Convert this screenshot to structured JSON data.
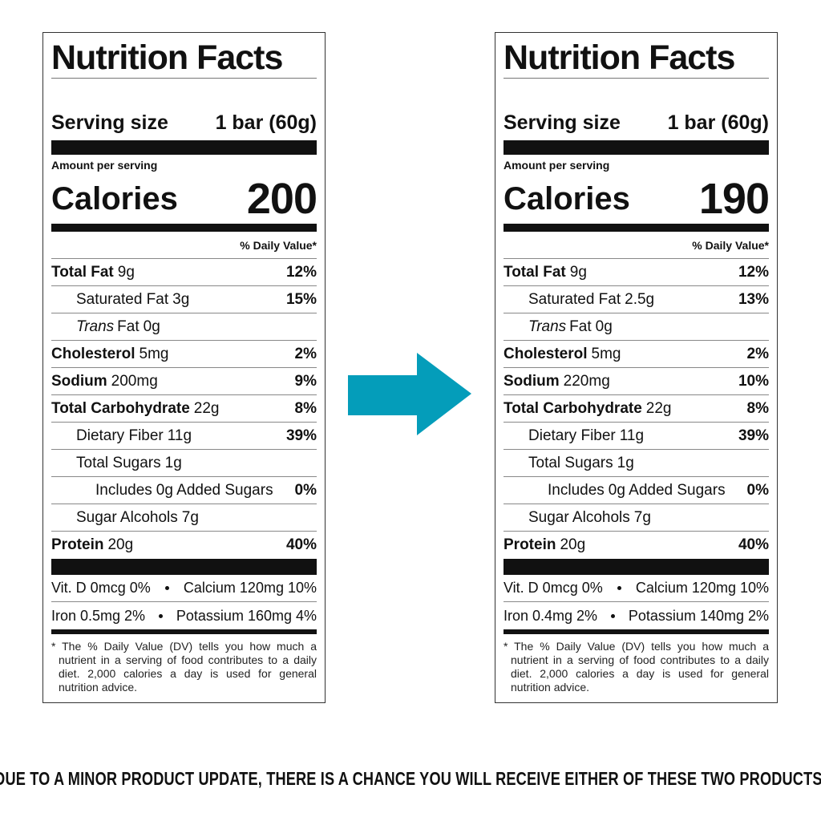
{
  "labels": [
    {
      "title": "Nutrition Facts",
      "serving_label": "Serving size",
      "serving_value": "1 bar (60g)",
      "amount_per_serving": "Amount per serving",
      "calories_label": "Calories",
      "calories": 200,
      "dv_header": "% Daily Value*",
      "rows": [
        {
          "name": "Total Fat",
          "amount": "9g",
          "dv": "12%",
          "level": 0,
          "bold": true
        },
        {
          "name": "Saturated Fat",
          "amount": "3g",
          "dv": "15%",
          "level": 1,
          "bold": false
        },
        {
          "name_italic": "Trans",
          "name": "Fat",
          "amount": "0g",
          "level": 1,
          "bold": false
        },
        {
          "name": "Cholesterol",
          "amount": "5mg",
          "dv": "2%",
          "level": 0,
          "bold": true
        },
        {
          "name": "Sodium",
          "amount": "200mg",
          "dv": "9%",
          "level": 0,
          "bold": true
        },
        {
          "name": "Total Carbohydrate",
          "amount": "22g",
          "dv": "8%",
          "level": 0,
          "bold": true
        },
        {
          "name": "Dietary Fiber",
          "amount": "11g",
          "dv": "39%",
          "level": 1,
          "bold": false
        },
        {
          "name": "Total Sugars",
          "amount": "1g",
          "level": 1,
          "bold": false
        },
        {
          "name": "Includes",
          "amount": "0g Added Sugars",
          "dv": "0%",
          "level": 2,
          "bold": false
        },
        {
          "name": "Sugar Alcohols",
          "amount": "7g",
          "level": 1,
          "bold": false
        },
        {
          "name": "Protein",
          "amount": "20g",
          "dv": "40%",
          "level": 0,
          "bold": true
        }
      ],
      "vitamins": [
        [
          "Vit. D 0mcg 0%",
          "Calcium 120mg 10%"
        ],
        [
          "Iron 0.5mg 2%",
          "Potassium 160mg 4%"
        ]
      ],
      "footnote": "* The % Daily Value (DV) tells you how much a nutrient in a serving of food contributes to a daily diet. 2,000 calories a day is used for general nutrition advice."
    },
    {
      "title": "Nutrition Facts",
      "serving_label": "Serving size",
      "serving_value": "1 bar (60g)",
      "amount_per_serving": "Amount per serving",
      "calories_label": "Calories",
      "calories": 190,
      "dv_header": "% Daily Value*",
      "rows": [
        {
          "name": "Total Fat",
          "amount": "9g",
          "dv": "12%",
          "level": 0,
          "bold": true
        },
        {
          "name": "Saturated Fat",
          "amount": "2.5g",
          "dv": "13%",
          "level": 1,
          "bold": false
        },
        {
          "name_italic": "Trans",
          "name": "Fat",
          "amount": "0g",
          "level": 1,
          "bold": false
        },
        {
          "name": "Cholesterol",
          "amount": "5mg",
          "dv": "2%",
          "level": 0,
          "bold": true
        },
        {
          "name": "Sodium",
          "amount": "220mg",
          "dv": "10%",
          "level": 0,
          "bold": true
        },
        {
          "name": "Total Carbohydrate",
          "amount": "22g",
          "dv": "8%",
          "level": 0,
          "bold": true
        },
        {
          "name": "Dietary Fiber",
          "amount": "11g",
          "dv": "39%",
          "level": 1,
          "bold": false
        },
        {
          "name": "Total Sugars",
          "amount": "1g",
          "level": 1,
          "bold": false
        },
        {
          "name": "Includes",
          "amount": "0g Added Sugars",
          "dv": "0%",
          "level": 2,
          "bold": false
        },
        {
          "name": "Sugar Alcohols",
          "amount": "7g",
          "level": 1,
          "bold": false
        },
        {
          "name": "Protein",
          "amount": "20g",
          "dv": "40%",
          "level": 0,
          "bold": true
        }
      ],
      "vitamins": [
        [
          "Vit. D 0mcg 0%",
          "Calcium 120mg 10%"
        ],
        [
          "Iron 0.4mg 2%",
          "Potassium 140mg 2%"
        ]
      ],
      "footnote": "* The % Daily Value (DV) tells you how much a nutrient in a serving of food contributes to a daily diet. 2,000 calories a day is used for general nutrition advice."
    }
  ],
  "notice": "DUE TO A MINOR PRODUCT UPDATE, THERE IS A CHANCE YOU WILL RECEIVE EITHER OF THESE TWO PRODUCTS."
}
